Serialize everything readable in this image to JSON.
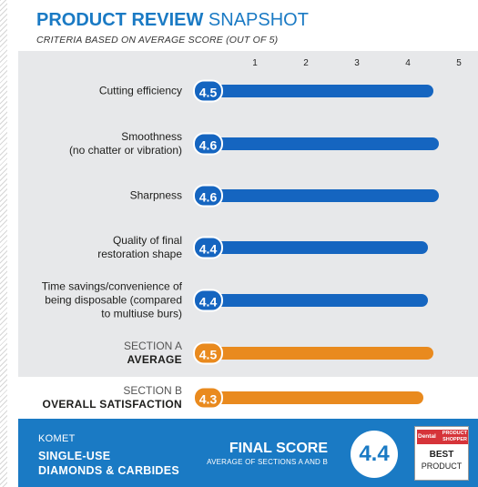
{
  "header": {
    "title_bold": "PRODUCT REVIEW",
    "title_light": "SNAPSHOT",
    "subtitle": "CRITERIA BASED ON AVERAGE SCORE (OUT OF 5)"
  },
  "chart_data": {
    "type": "bar",
    "orientation": "horizontal",
    "title": "PRODUCT REVIEW SNAPSHOT",
    "subtitle": "CRITERIA BASED ON AVERAGE SCORE (OUT OF 5)",
    "xlim": [
      0,
      5
    ],
    "ticks": [
      "1",
      "2",
      "3",
      "4",
      "5"
    ],
    "categories": [
      [
        "Cutting efficiency"
      ],
      [
        "Smoothness",
        "(no chatter or vibration)"
      ],
      [
        "Sharpness"
      ],
      [
        "Quality of final",
        "restoration shape"
      ],
      [
        "Time savings/convenience of",
        "being disposable (compared",
        "to multiuse burs)"
      ],
      [
        "SECTION A",
        "AVERAGE"
      ],
      [
        "SECTION B",
        "OVERALL SATISFACTION"
      ]
    ],
    "values": [
      4.5,
      4.6,
      4.6,
      4.4,
      4.4,
      4.5,
      4.3
    ],
    "value_labels": [
      "4.5",
      "4.6",
      "4.6",
      "4.4",
      "4.4",
      "4.5",
      "4.3"
    ],
    "bar_colors": [
      "#1565c0",
      "#1565c0",
      "#1565c0",
      "#1565c0",
      "#1565c0",
      "#e98a1e",
      "#e98a1e"
    ]
  },
  "footer": {
    "brand": "KOMET",
    "product_line1": "SINGLE-USE",
    "product_line2": "DIAMONDS & CARBIDES",
    "final_label": "FINAL SCORE",
    "final_sub": "AVERAGE OF SECTIONS A AND B",
    "final_value": "4.4",
    "award_dental": "Dental",
    "award_shopper_1": "PRODUCT",
    "award_shopper_2": "SHOPPER",
    "award_best": "BEST",
    "award_product": "PRODUCT"
  },
  "colors": {
    "accent": "#1a7ac4",
    "bar_blue": "#1565c0",
    "bar_orange": "#e98a1e",
    "panel_grey": "#e7e8ea"
  }
}
